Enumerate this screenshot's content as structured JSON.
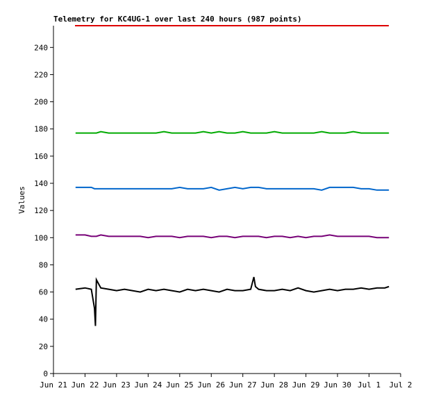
{
  "chart_data": {
    "type": "line",
    "title": "Telemetry for KC4UG-1 over last 240 hours (987 points)",
    "y_label": "Values",
    "x": [
      0.7,
      1.0,
      1.2,
      1.3,
      1.33,
      1.36,
      1.5,
      1.75,
      2.0,
      2.25,
      2.5,
      2.75,
      3.0,
      3.25,
      3.5,
      3.75,
      4.0,
      4.25,
      4.5,
      4.75,
      5.0,
      5.25,
      5.5,
      5.75,
      6.0,
      6.25,
      6.35,
      6.4,
      6.5,
      6.75,
      7.0,
      7.25,
      7.5,
      7.75,
      8.0,
      8.25,
      8.5,
      8.75,
      9.0,
      9.25,
      9.5,
      9.75,
      10.0,
      10.25,
      10.5,
      10.63
    ],
    "series": [
      {
        "color": "#00aa00",
        "values": [
          177,
          177,
          177,
          177,
          177,
          177,
          178,
          177,
          177,
          177,
          177,
          177,
          177,
          177,
          178,
          177,
          177,
          177,
          177,
          178,
          177,
          178,
          177,
          177,
          178,
          177,
          177,
          177,
          177,
          177,
          178,
          177,
          177,
          177,
          177,
          177,
          178,
          177,
          177,
          177,
          178,
          177,
          177,
          177,
          177,
          177
        ]
      },
      {
        "color": "#0066cc",
        "values": [
          137,
          137,
          137,
          136,
          136,
          136,
          136,
          136,
          136,
          136,
          136,
          136,
          136,
          136,
          136,
          136,
          137,
          136,
          136,
          136,
          137,
          135,
          136,
          137,
          136,
          137,
          137,
          137,
          137,
          136,
          136,
          136,
          136,
          136,
          136,
          136,
          135,
          137,
          137,
          137,
          137,
          136,
          136,
          135,
          135,
          135
        ]
      },
      {
        "color": "#770077",
        "values": [
          102,
          102,
          101,
          101,
          101,
          101,
          102,
          101,
          101,
          101,
          101,
          101,
          100,
          101,
          101,
          101,
          100,
          101,
          101,
          101,
          100,
          101,
          101,
          100,
          101,
          101,
          101,
          101,
          101,
          100,
          101,
          101,
          100,
          101,
          100,
          101,
          101,
          102,
          101,
          101,
          101,
          101,
          101,
          100,
          100,
          100
        ]
      },
      {
        "color": "#000000",
        "values": [
          62,
          63,
          62,
          48,
          35,
          69,
          63,
          62,
          61,
          62,
          61,
          60,
          62,
          61,
          62,
          61,
          60,
          62,
          61,
          62,
          61,
          60,
          62,
          61,
          61,
          62,
          71,
          64,
          62,
          61,
          61,
          62,
          61,
          63,
          61,
          60,
          61,
          62,
          61,
          62,
          62,
          63,
          62,
          63,
          63,
          64
        ]
      }
    ],
    "xlim": [
      0,
      11
    ],
    "xticks": [
      {
        "value": 0,
        "label": "Jun 21"
      },
      {
        "value": 1,
        "label": "Jun 22"
      },
      {
        "value": 2,
        "label": "Jun 23"
      },
      {
        "value": 3,
        "label": "Jun 24"
      },
      {
        "value": 4,
        "label": "Jun 25"
      },
      {
        "value": 5,
        "label": "Jun 26"
      },
      {
        "value": 6,
        "label": "Jun 27"
      },
      {
        "value": 7,
        "label": "Jun 28"
      },
      {
        "value": 8,
        "label": "Jun 29"
      },
      {
        "value": 9,
        "label": "Jun 30"
      },
      {
        "value": 10,
        "label": "Jul 1"
      },
      {
        "value": 11,
        "label": "Jul 2"
      }
    ],
    "ylim": [
      0,
      256
    ],
    "yticks": [
      0,
      20,
      40,
      60,
      80,
      100,
      120,
      140,
      160,
      180,
      200,
      220,
      240
    ]
  }
}
